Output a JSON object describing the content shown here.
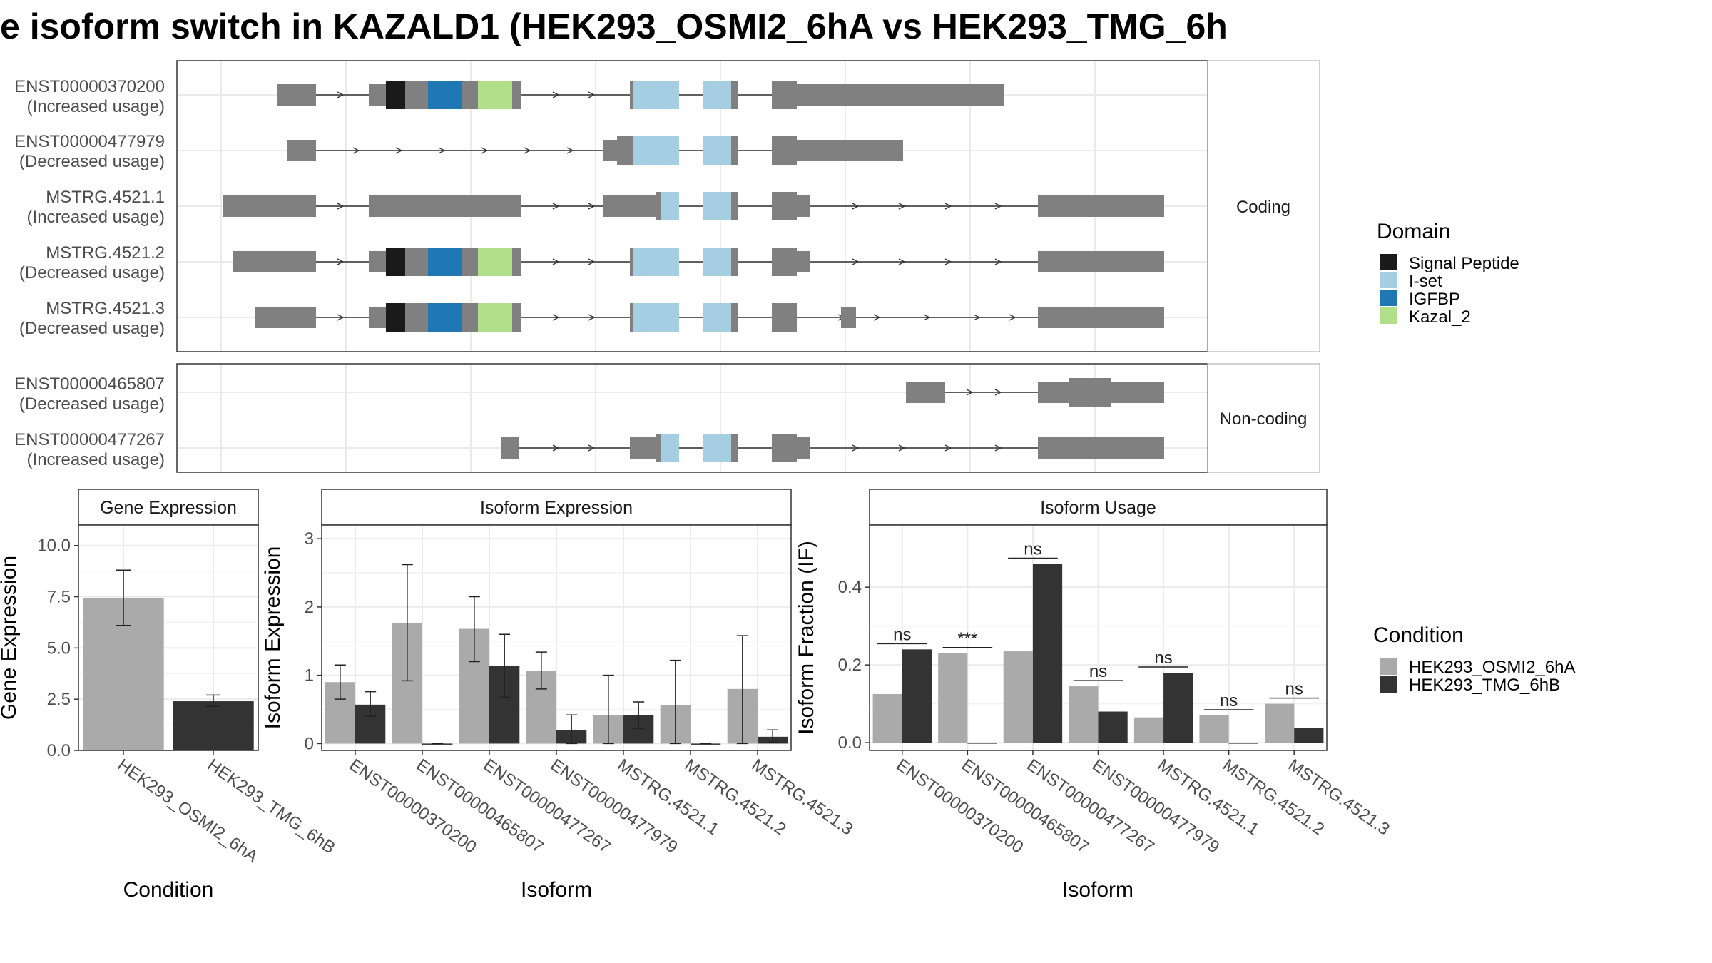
{
  "title": "e isoform switch in KAZALD1 (HEK293_OSMI2_6hA vs HEK293_TMG_6h",
  "structure": {
    "facets": [
      "Coding",
      "Non-coding"
    ],
    "coding_isoforms": [
      {
        "id": "ENST00000370200",
        "usage": "(Increased usage)"
      },
      {
        "id": "ENST00000477979",
        "usage": "(Decreased usage)"
      },
      {
        "id": "MSTRG.4521.1",
        "usage": "(Increased usage)"
      },
      {
        "id": "MSTRG.4521.2",
        "usage": "(Decreased usage)"
      },
      {
        "id": "MSTRG.4521.3",
        "usage": "(Decreased usage)"
      }
    ],
    "noncoding_isoforms": [
      {
        "id": "ENST00000465807",
        "usage": "(Decreased usage)"
      },
      {
        "id": "ENST00000477267",
        "usage": "(Increased usage)"
      }
    ]
  },
  "domain_legend": {
    "title": "Domain",
    "items": [
      {
        "label": "Signal Peptide",
        "color": "#1a1a1a"
      },
      {
        "label": "I-set",
        "color": "#a6cee3"
      },
      {
        "label": "IGFBP",
        "color": "#1f78b4"
      },
      {
        "label": "Kazal_2",
        "color": "#b2df8a"
      }
    ]
  },
  "condition_legend": {
    "title": "Condition",
    "items": [
      {
        "label": "HEK293_OSMI2_6hA",
        "color": "#aaaaaa"
      },
      {
        "label": "HEK293_TMG_6hB",
        "color": "#333333"
      }
    ]
  },
  "chart_data": [
    {
      "type": "bar",
      "title": "Gene Expression",
      "xlabel": "Condition",
      "ylabel": "Gene Expression",
      "ylim": [
        0,
        11
      ],
      "yticks": [
        "0.0",
        "2.5",
        "5.0",
        "7.5",
        "10.0"
      ],
      "categories": [
        "HEK293_OSMI2_6hA",
        "HEK293_TMG_6hB"
      ],
      "values": [
        7.45,
        2.4
      ],
      "error_low": [
        6.1,
        2.15
      ],
      "error_high": [
        8.8,
        2.7
      ]
    },
    {
      "type": "bar",
      "title": "Isoform Expression",
      "xlabel": "Isoform",
      "ylabel": "Isoform Expression",
      "ylim": [
        -0.1,
        3.2
      ],
      "yticks": [
        "0",
        "1",
        "2",
        "3"
      ],
      "categories": [
        "ENST00000370200",
        "ENST00000465807",
        "ENST00000477267",
        "ENST00000477979",
        "MSTRG.4521.1",
        "MSTRG.4521.2",
        "MSTRG.4521.3"
      ],
      "series": [
        {
          "name": "HEK293_OSMI2_6hA",
          "values": [
            0.9,
            1.77,
            1.68,
            1.07,
            0.42,
            0.56,
            0.8
          ],
          "err_low": [
            0.65,
            0.92,
            1.2,
            0.8,
            0.0,
            0.0,
            0.0
          ],
          "err_high": [
            1.15,
            2.62,
            2.15,
            1.34,
            1.0,
            1.22,
            1.58
          ]
        },
        {
          "name": "HEK293_TMG_6hB",
          "values": [
            0.57,
            0.0,
            1.14,
            0.2,
            0.42,
            0.0,
            0.1
          ],
          "err_low": [
            0.4,
            0.0,
            0.68,
            0.0,
            0.22,
            0.0,
            0.02
          ],
          "err_high": [
            0.76,
            0.0,
            1.6,
            0.42,
            0.61,
            0.0,
            0.2
          ]
        }
      ]
    },
    {
      "type": "bar",
      "title": "Isoform Usage",
      "xlabel": "Isoform",
      "ylabel": "Isoform Fraction (IF)",
      "ylim": [
        -0.02,
        0.56
      ],
      "yticks": [
        "0.0",
        "0.2",
        "0.4"
      ],
      "categories": [
        "ENST00000370200",
        "ENST00000465807",
        "ENST00000477267",
        "ENST00000477979",
        "MSTRG.4521.1",
        "MSTRG.4521.2",
        "MSTRG.4521.3"
      ],
      "series": [
        {
          "name": "HEK293_OSMI2_6hA",
          "values": [
            0.125,
            0.23,
            0.235,
            0.145,
            0.065,
            0.07,
            0.1
          ]
        },
        {
          "name": "HEK293_TMG_6hB",
          "values": [
            0.24,
            0.0,
            0.46,
            0.08,
            0.18,
            0.0,
            0.037
          ]
        }
      ],
      "significance": [
        "ns",
        "***",
        "ns",
        "ns",
        "ns",
        "ns",
        "ns"
      ]
    }
  ]
}
